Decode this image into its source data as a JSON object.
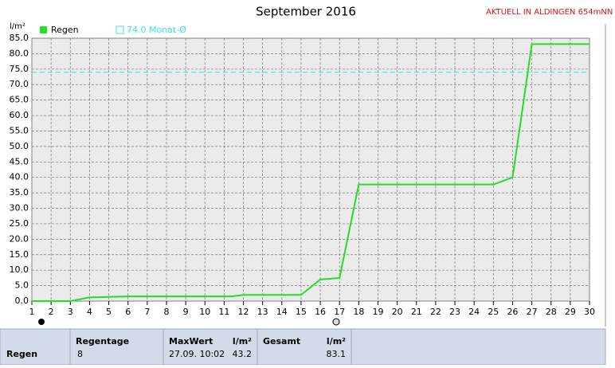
{
  "chart_data": {
    "type": "line",
    "title": "September 2016",
    "annotation": "AKTUELL IN ALDINGEN 654mNN",
    "y_label": "l/m²",
    "x": [
      1,
      3,
      4,
      6,
      11.4,
      12,
      15,
      16,
      16.5,
      17,
      18,
      25,
      26,
      27,
      30
    ],
    "series": [
      {
        "name": "Regen",
        "color": "#22e022",
        "values": [
          0,
          0,
          1.2,
          1.5,
          1.5,
          2.0,
          2.0,
          7.0,
          7.2,
          7.5,
          37.7,
          37.7,
          40.0,
          83.1,
          83.1
        ]
      }
    ],
    "reference": {
      "name": "74.0 Monat-Ø",
      "value": 74.0,
      "color": "#40e0e0"
    },
    "xlim": [
      1,
      30
    ],
    "xticks": [
      1,
      2,
      3,
      4,
      5,
      6,
      7,
      8,
      9,
      10,
      11,
      12,
      13,
      14,
      15,
      16,
      17,
      18,
      19,
      20,
      21,
      22,
      23,
      24,
      25,
      26,
      27,
      28,
      29,
      30
    ],
    "ylim": [
      0,
      85
    ],
    "yticks": [
      {
        "value": 0,
        "label": "0.0"
      },
      {
        "value": 5,
        "label": "5.0"
      },
      {
        "value": 10,
        "label": "10.0"
      },
      {
        "value": 15,
        "label": "15.0"
      },
      {
        "value": 20,
        "label": "20.0"
      },
      {
        "value": 25,
        "label": "25.0"
      },
      {
        "value": 30,
        "label": "30.0"
      },
      {
        "value": 35,
        "label": "35.0"
      },
      {
        "value": 40,
        "label": "40.0"
      },
      {
        "value": 45,
        "label": "45.0"
      },
      {
        "value": 50,
        "label": "50.0"
      },
      {
        "value": 55,
        "label": "55.0"
      },
      {
        "value": 60,
        "label": "60.0"
      },
      {
        "value": 65,
        "label": "65.0"
      },
      {
        "value": 70,
        "label": "70.0"
      },
      {
        "value": 75,
        "label": "75.0"
      },
      {
        "value": 80,
        "label": "80.0"
      },
      {
        "value": 85,
        "label": "85.0"
      }
    ],
    "grid": true
  },
  "summary_table": {
    "row_label": "Regen",
    "columns": [
      {
        "header": "Regentage",
        "value": 8
      },
      {
        "header": "MaxWert",
        "unit": "l/m²",
        "date": "27.09. 10:02",
        "value": 43.2
      },
      {
        "header": "Gesamt",
        "unit": "l/m²",
        "value": 83.1
      }
    ]
  }
}
